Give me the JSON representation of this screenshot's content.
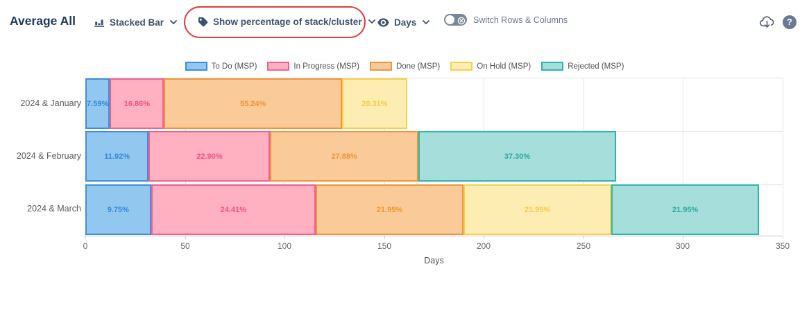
{
  "header": {
    "title": "Average All",
    "chart_type_control": {
      "label": "Stacked Bar",
      "icon": "bar-chart-icon"
    },
    "percentage_control": {
      "label": "Show percentage of stack/cluster",
      "icon": "tag-icon",
      "annotated": true,
      "annotation_color": "#e13c3c"
    },
    "measure_control": {
      "label": "Days",
      "icon": "eye-icon"
    },
    "switch_toggle": {
      "label": "Switch Rows & Columns",
      "state": "off"
    },
    "action_icons": [
      "cloud-download-icon",
      "help-icon"
    ]
  },
  "chart_data": {
    "type": "bar",
    "orientation": "horizontal",
    "stacked": true,
    "value_display": "percent_of_stack",
    "title": "",
    "xlabel": "Days",
    "xlim": [
      0,
      350
    ],
    "x_ticks": [
      0,
      50,
      100,
      150,
      200,
      250,
      300,
      350
    ],
    "grid": true,
    "legend_position": "top-center",
    "categories": [
      "2024 & January",
      "2024 & February",
      "2024 & March"
    ],
    "stack_totals_days": [
      161.6,
      266.5,
      338.2
    ],
    "series": [
      {
        "name": "To Do (MSP)",
        "fill": "#92c8f0",
        "border": "#3e8fd9",
        "label_color": "#3287d9",
        "values": [
          12.3,
          31.8,
          33.0
        ],
        "percent_labels": [
          "7.59%",
          "11.92%",
          "9.75%"
        ]
      },
      {
        "name": "In Progress (MSP)",
        "fill": "#ffb1c1",
        "border": "#f4608e",
        "label_color": "#f2517c",
        "values": [
          27.2,
          61.0,
          82.6
        ],
        "percent_labels": [
          "16.86%",
          "22.90%",
          "24.41%"
        ]
      },
      {
        "name": "Done (MSP)",
        "fill": "#faca98",
        "border": "#f0953c",
        "label_color": "#ef9335",
        "values": [
          89.3,
          74.3,
          74.2
        ],
        "percent_labels": [
          "55.24%",
          "27.88%",
          "21.95%"
        ]
      },
      {
        "name": "On Hold (MSP)",
        "fill": "#fdedb3",
        "border": "#f7cf4f",
        "label_color": "#f3cb45",
        "values": [
          32.8,
          0,
          74.2
        ],
        "percent_labels": [
          "20.31%",
          "",
          "21.95%"
        ]
      },
      {
        "name": "Rejected (MSP)",
        "fill": "#a6dedb",
        "border": "#2fb5ab",
        "label_color": "#2ea79e",
        "values": [
          0,
          99.4,
          74.2
        ],
        "percent_labels": [
          "",
          "37.30%",
          "21.95%"
        ]
      }
    ]
  }
}
